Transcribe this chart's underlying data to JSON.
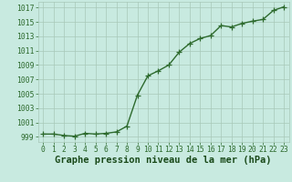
{
  "x": [
    0,
    1,
    2,
    3,
    4,
    5,
    6,
    7,
    8,
    9,
    10,
    11,
    12,
    13,
    14,
    15,
    16,
    17,
    18,
    19,
    20,
    21,
    22,
    23
  ],
  "y": [
    999.4,
    999.4,
    999.2,
    999.1,
    999.5,
    999.4,
    999.5,
    999.7,
    1000.5,
    1004.8,
    1007.5,
    1008.2,
    1009.0,
    1010.8,
    1012.0,
    1012.7,
    1013.1,
    1014.5,
    1014.3,
    1014.8,
    1015.1,
    1015.35,
    1016.6,
    1017.1
  ],
  "line_color": "#2d6a2d",
  "marker": "+",
  "marker_color": "#2d6a2d",
  "bg_color": "#c8eae0",
  "grid_color": "#a8c8b8",
  "xlabel": "Graphe pression niveau de la mer (hPa)",
  "xlabel_color": "#1a4a1a",
  "ylabel_ticks": [
    999,
    1001,
    1003,
    1005,
    1007,
    1009,
    1011,
    1013,
    1015,
    1017
  ],
  "xlim": [
    -0.5,
    23.5
  ],
  "ylim": [
    998.3,
    1017.8
  ],
  "tick_color": "#2d6a2d",
  "tick_fontsize": 5.8,
  "xlabel_fontsize": 7.5,
  "linewidth": 1.0,
  "markersize": 4,
  "markeredgewidth": 0.9
}
